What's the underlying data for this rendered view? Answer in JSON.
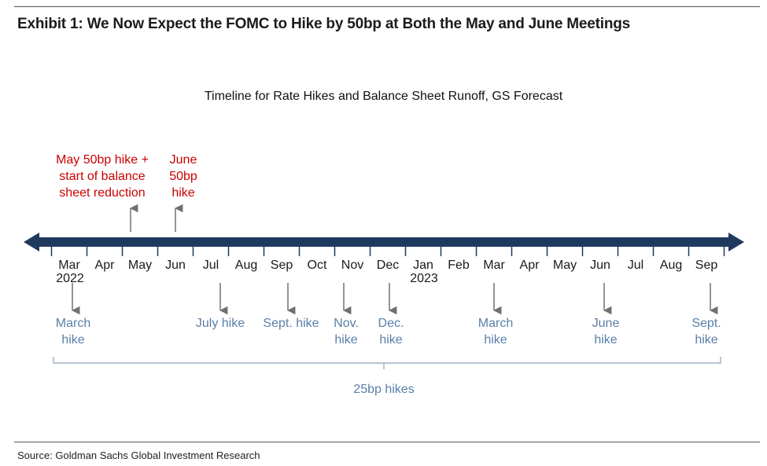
{
  "exhibit_title": "Exhibit 1: We Now Expect the FOMC to Hike by 50bp at Both the May and June Meetings",
  "subtitle": "Timeline for Rate Hikes and Balance Sheet Runoff, GS Forecast",
  "source": "Source: Goldman Sachs Global Investment Research",
  "colors": {
    "axis": "#1f3a5f",
    "fifty_bp": "#cc0000",
    "twentyfive_bp": "#5a7fa8",
    "arrow": "#707070",
    "months": "#1a1a1a"
  },
  "months": [
    {
      "label": "Mar",
      "year": "2022"
    },
    {
      "label": "Apr",
      "year": ""
    },
    {
      "label": "May",
      "year": ""
    },
    {
      "label": "Jun",
      "year": ""
    },
    {
      "label": "Jul",
      "year": ""
    },
    {
      "label": "Aug",
      "year": ""
    },
    {
      "label": "Sep",
      "year": ""
    },
    {
      "label": "Oct",
      "year": ""
    },
    {
      "label": "Nov",
      "year": ""
    },
    {
      "label": "Dec",
      "year": ""
    },
    {
      "label": "Jan",
      "year": "2023"
    },
    {
      "label": "Feb",
      "year": ""
    },
    {
      "label": "Mar",
      "year": ""
    },
    {
      "label": "Apr",
      "year": ""
    },
    {
      "label": "May",
      "year": ""
    },
    {
      "label": "Jun",
      "year": ""
    },
    {
      "label": "Jul",
      "year": ""
    },
    {
      "label": "Aug",
      "year": ""
    },
    {
      "label": "Sep",
      "year": ""
    }
  ],
  "events_50bp": [
    {
      "month_index": 2,
      "lines": [
        "May 50bp hike +",
        "start of balance",
        "sheet reduction"
      ]
    },
    {
      "month_index": 3,
      "lines": [
        "June",
        "50bp",
        "hike"
      ]
    }
  ],
  "events_25bp": [
    {
      "month_index": 0,
      "lines": [
        "March",
        "hike"
      ]
    },
    {
      "month_index": 4,
      "lines": [
        "July hike"
      ]
    },
    {
      "month_index": 6,
      "lines": [
        "Sept. hike"
      ]
    },
    {
      "month_index": 8,
      "lines": [
        "Nov.",
        "hike"
      ]
    },
    {
      "month_index": 9,
      "lines": [
        "Dec.",
        "hike"
      ]
    },
    {
      "month_index": 12,
      "lines": [
        "March",
        "hike"
      ]
    },
    {
      "month_index": 15,
      "lines": [
        "June",
        "hike"
      ]
    },
    {
      "month_index": 18,
      "lines": [
        "Sept.",
        "hike"
      ]
    }
  ],
  "bracket_label": "25bp hikes"
}
